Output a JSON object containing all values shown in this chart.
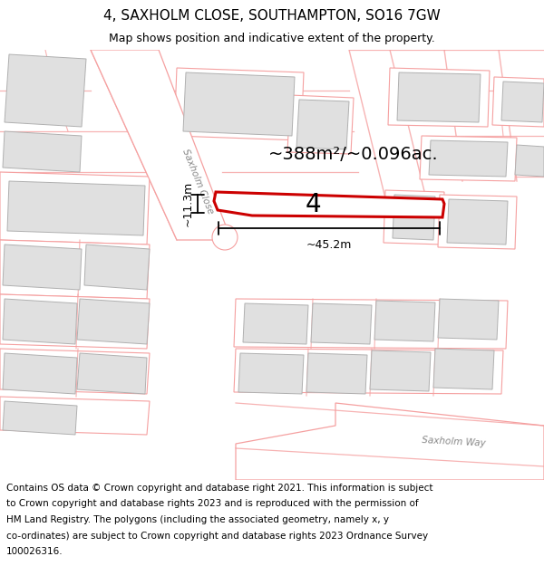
{
  "title": "4, SAXHOLM CLOSE, SOUTHAMPTON, SO16 7GW",
  "subtitle": "Map shows position and indicative extent of the property.",
  "area_text": "~388m²/~0.096ac.",
  "dim_width": "~45.2m",
  "dim_height": "~11.3m",
  "property_number": "4",
  "street_label_1": "Saxholm Close",
  "street_label_2": "Saxholm Way",
  "map_bg": "#ffffff",
  "road_line_color": "#f5a0a0",
  "road_line_color2": "#c8c8c8",
  "building_fill": "#e0e0e0",
  "building_edge": "#b0b0b0",
  "plot_fill": "#ffffff",
  "plot_edge": "#f5a0a0",
  "property_outline_color": "#cc0000",
  "property_fill": "#ffffff",
  "dim_line_color": "#000000",
  "title_fontsize": 11,
  "subtitle_fontsize": 9,
  "footer_fontsize": 7.5,
  "footer_lines": [
    "Contains OS data © Crown copyright and database right 2021. This information is subject",
    "to Crown copyright and database rights 2023 and is reproduced with the permission of",
    "HM Land Registry. The polygons (including the associated geometry, namely x, y",
    "co-ordinates) are subject to Crown copyright and database rights 2023 Ordnance Survey",
    "100026316."
  ]
}
